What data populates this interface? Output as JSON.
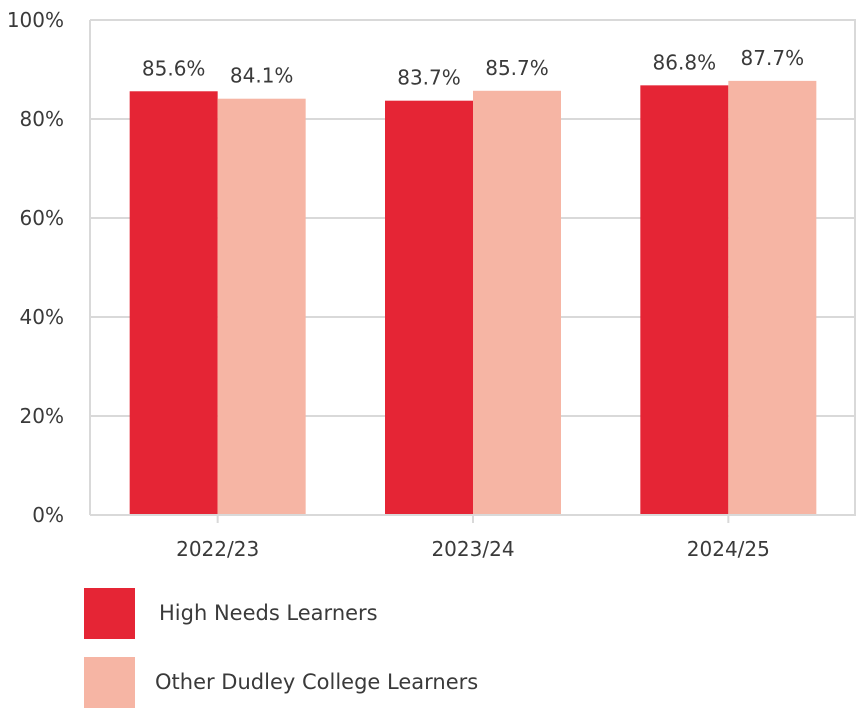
{
  "chart_data": {
    "type": "bar",
    "categories": [
      "2022/23",
      "2023/24",
      "2024/25"
    ],
    "series": [
      {
        "name": "High Needs Learners",
        "values": [
          85.6,
          83.7,
          86.8
        ],
        "labels": [
          "85.6%",
          "83.7%",
          "86.8%"
        ],
        "color": "#e52535"
      },
      {
        "name": "Other Dudley College Learners",
        "values": [
          84.1,
          85.7,
          87.7
        ],
        "labels": [
          "84.1%",
          "85.7%",
          "87.7%"
        ],
        "color": "#f6b5a4"
      }
    ],
    "ylim": [
      0,
      100
    ],
    "yticks": [
      0,
      20,
      40,
      60,
      80,
      100
    ],
    "ytick_labels": [
      "0%",
      "20%",
      "40%",
      "60%",
      "80%",
      "100%"
    ],
    "grid": true,
    "legend_position": "bottom-left"
  }
}
